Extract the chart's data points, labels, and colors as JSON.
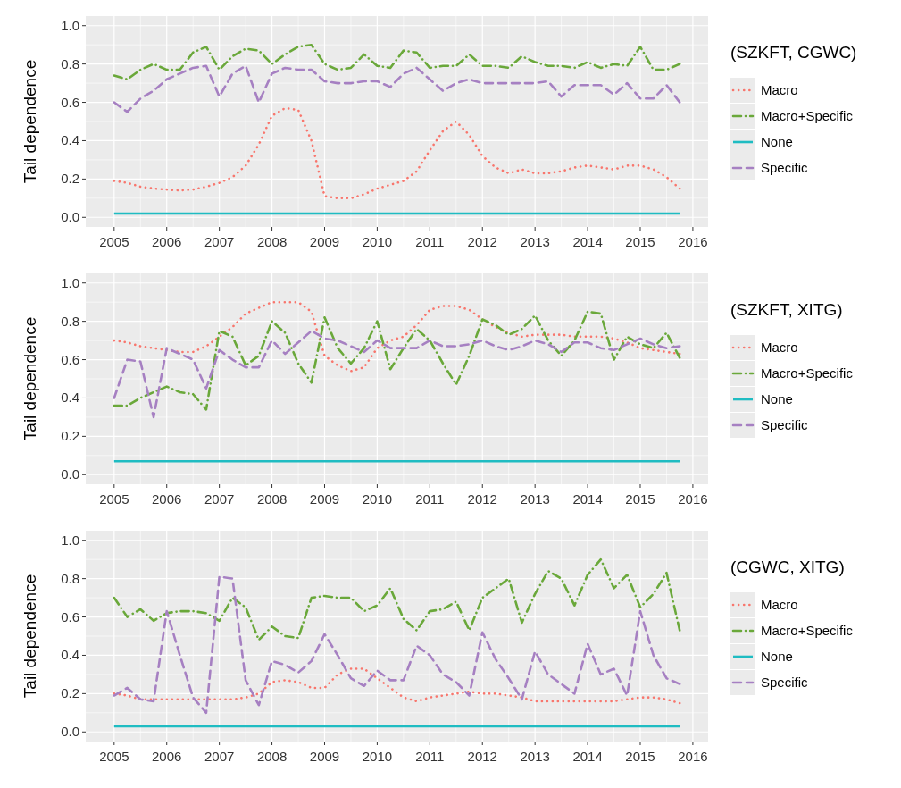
{
  "chart_data": [
    {
      "type": "line",
      "ylabel": "Tail dependence",
      "legend_title": "(SZKFT, CGWC)",
      "legend": "right",
      "grid": true,
      "xlim": [
        2004.46,
        2016.29
      ],
      "ylim": [
        -0.05,
        1.05
      ],
      "xticks": [
        2005,
        2006,
        2007,
        2008,
        2009,
        2010,
        2011,
        2012,
        2013,
        2014,
        2015,
        2016
      ],
      "yticks": [
        {
          "value": 0,
          "label": "0.0"
        },
        {
          "value": 0.2,
          "label": "0.2"
        },
        {
          "value": 0.4,
          "label": "0.4"
        },
        {
          "value": 0.6,
          "label": "0.6"
        },
        {
          "value": 0.8,
          "label": "0.8"
        },
        {
          "value": 1,
          "label": "1.0"
        }
      ],
      "x": [
        2005,
        2005.25,
        2005.5,
        2005.75,
        2006,
        2006.25,
        2006.5,
        2006.75,
        2007,
        2007.25,
        2007.5,
        2007.75,
        2008,
        2008.25,
        2008.5,
        2008.75,
        2009,
        2009.25,
        2009.5,
        2009.75,
        2010,
        2010.25,
        2010.5,
        2010.75,
        2011,
        2011.25,
        2011.5,
        2011.75,
        2012,
        2012.25,
        2012.5,
        2012.75,
        2013,
        2013.25,
        2013.5,
        2013.75,
        2014,
        2014.25,
        2014.5,
        2014.75,
        2015,
        2015.25,
        2015.5,
        2015.75
      ],
      "series": [
        {
          "name": "Macro",
          "color": "#f8766d",
          "line_style": "dotted",
          "values": [
            0.19,
            0.18,
            0.16,
            0.15,
            0.145,
            0.14,
            0.145,
            0.16,
            0.18,
            0.21,
            0.27,
            0.38,
            0.53,
            0.57,
            0.56,
            0.4,
            0.11,
            0.1,
            0.1,
            0.12,
            0.15,
            0.17,
            0.19,
            0.24,
            0.35,
            0.45,
            0.5,
            0.43,
            0.32,
            0.26,
            0.23,
            0.25,
            0.23,
            0.23,
            0.24,
            0.26,
            0.27,
            0.26,
            0.25,
            0.27,
            0.27,
            0.25,
            0.21,
            0.15
          ]
        },
        {
          "name": "Macro+Specific",
          "color": "#6aa83a",
          "line_style": "dashdot",
          "values": [
            0.74,
            0.72,
            0.77,
            0.8,
            0.77,
            0.77,
            0.86,
            0.89,
            0.77,
            0.84,
            0.88,
            0.87,
            0.8,
            0.85,
            0.89,
            0.9,
            0.8,
            0.77,
            0.78,
            0.85,
            0.79,
            0.78,
            0.87,
            0.86,
            0.78,
            0.79,
            0.79,
            0.85,
            0.79,
            0.79,
            0.78,
            0.84,
            0.81,
            0.79,
            0.79,
            0.78,
            0.81,
            0.78,
            0.8,
            0.79,
            0.89,
            0.77,
            0.77,
            0.8
          ]
        },
        {
          "name": "None",
          "color": "#1fbcc2",
          "line_style": "solid",
          "values": [
            0.02,
            0.02,
            0.02,
            0.02,
            0.02,
            0.02,
            0.02,
            0.02,
            0.02,
            0.02,
            0.02,
            0.02,
            0.02,
            0.02,
            0.02,
            0.02,
            0.02,
            0.02,
            0.02,
            0.02,
            0.02,
            0.02,
            0.02,
            0.02,
            0.02,
            0.02,
            0.02,
            0.02,
            0.02,
            0.02,
            0.02,
            0.02,
            0.02,
            0.02,
            0.02,
            0.02,
            0.02,
            0.02,
            0.02,
            0.02,
            0.02,
            0.02,
            0.02,
            0.02
          ]
        },
        {
          "name": "Specific",
          "color": "#a680c2",
          "line_style": "dashed",
          "values": [
            0.6,
            0.55,
            0.62,
            0.66,
            0.72,
            0.75,
            0.78,
            0.79,
            0.63,
            0.75,
            0.79,
            0.6,
            0.75,
            0.78,
            0.77,
            0.77,
            0.71,
            0.7,
            0.7,
            0.71,
            0.71,
            0.68,
            0.75,
            0.78,
            0.72,
            0.66,
            0.7,
            0.72,
            0.7,
            0.7,
            0.7,
            0.7,
            0.7,
            0.71,
            0.63,
            0.69,
            0.69,
            0.69,
            0.64,
            0.7,
            0.62,
            0.62,
            0.69,
            0.6
          ]
        }
      ]
    },
    {
      "type": "line",
      "ylabel": "Tail dependence",
      "legend_title": "(SZKFT, XITG)",
      "legend": "right",
      "grid": true,
      "xlim": [
        2004.46,
        2016.29
      ],
      "ylim": [
        -0.05,
        1.05
      ],
      "xticks": [
        2005,
        2006,
        2007,
        2008,
        2009,
        2010,
        2011,
        2012,
        2013,
        2014,
        2015,
        2016
      ],
      "yticks": [
        {
          "value": 0,
          "label": "0.0"
        },
        {
          "value": 0.2,
          "label": "0.2"
        },
        {
          "value": 0.4,
          "label": "0.4"
        },
        {
          "value": 0.6,
          "label": "0.6"
        },
        {
          "value": 0.8,
          "label": "0.8"
        },
        {
          "value": 1,
          "label": "1.0"
        }
      ],
      "x": [
        2005,
        2005.25,
        2005.5,
        2005.75,
        2006,
        2006.25,
        2006.5,
        2006.75,
        2007,
        2007.25,
        2007.5,
        2007.75,
        2008,
        2008.25,
        2008.5,
        2008.75,
        2009,
        2009.25,
        2009.5,
        2009.75,
        2010,
        2010.25,
        2010.5,
        2010.75,
        2011,
        2011.25,
        2011.5,
        2011.75,
        2012,
        2012.25,
        2012.5,
        2012.75,
        2013,
        2013.25,
        2013.5,
        2013.75,
        2014,
        2014.25,
        2014.5,
        2014.75,
        2015,
        2015.25,
        2015.5,
        2015.75
      ],
      "series": [
        {
          "name": "Macro",
          "color": "#f8766d",
          "line_style": "dotted",
          "values": [
            0.7,
            0.69,
            0.67,
            0.66,
            0.65,
            0.64,
            0.64,
            0.67,
            0.72,
            0.77,
            0.84,
            0.87,
            0.9,
            0.9,
            0.9,
            0.85,
            0.62,
            0.57,
            0.54,
            0.56,
            0.66,
            0.7,
            0.72,
            0.78,
            0.86,
            0.88,
            0.88,
            0.86,
            0.81,
            0.77,
            0.74,
            0.72,
            0.73,
            0.73,
            0.73,
            0.72,
            0.72,
            0.72,
            0.71,
            0.69,
            0.66,
            0.65,
            0.64,
            0.63
          ]
        },
        {
          "name": "Macro+Specific",
          "color": "#6aa83a",
          "line_style": "dashdot",
          "values": [
            0.36,
            0.36,
            0.4,
            0.43,
            0.46,
            0.43,
            0.42,
            0.34,
            0.75,
            0.72,
            0.57,
            0.62,
            0.8,
            0.74,
            0.58,
            0.48,
            0.82,
            0.66,
            0.58,
            0.66,
            0.8,
            0.55,
            0.66,
            0.76,
            0.7,
            0.58,
            0.47,
            0.62,
            0.81,
            0.78,
            0.73,
            0.76,
            0.83,
            0.7,
            0.62,
            0.7,
            0.85,
            0.84,
            0.6,
            0.72,
            0.68,
            0.66,
            0.74,
            0.61
          ]
        },
        {
          "name": "None",
          "color": "#1fbcc2",
          "line_style": "solid",
          "values": [
            0.07,
            0.07,
            0.07,
            0.07,
            0.07,
            0.07,
            0.07,
            0.07,
            0.07,
            0.07,
            0.07,
            0.07,
            0.07,
            0.07,
            0.07,
            0.07,
            0.07,
            0.07,
            0.07,
            0.07,
            0.07,
            0.07,
            0.07,
            0.07,
            0.07,
            0.07,
            0.07,
            0.07,
            0.07,
            0.07,
            0.07,
            0.07,
            0.07,
            0.07,
            0.07,
            0.07,
            0.07,
            0.07,
            0.07,
            0.07,
            0.07,
            0.07,
            0.07,
            0.07
          ]
        },
        {
          "name": "Specific",
          "color": "#a680c2",
          "line_style": "dashed",
          "values": [
            0.4,
            0.6,
            0.59,
            0.3,
            0.66,
            0.63,
            0.6,
            0.45,
            0.65,
            0.6,
            0.56,
            0.56,
            0.7,
            0.63,
            0.69,
            0.75,
            0.71,
            0.7,
            0.67,
            0.64,
            0.7,
            0.66,
            0.66,
            0.66,
            0.7,
            0.67,
            0.67,
            0.68,
            0.7,
            0.67,
            0.65,
            0.67,
            0.7,
            0.68,
            0.64,
            0.69,
            0.69,
            0.66,
            0.65,
            0.68,
            0.71,
            0.68,
            0.66,
            0.67
          ]
        }
      ]
    },
    {
      "type": "line",
      "ylabel": "Tail dependence",
      "legend_title": "(CGWC, XITG)",
      "legend": "right",
      "grid": true,
      "xlim": [
        2004.46,
        2016.29
      ],
      "ylim": [
        -0.05,
        1.05
      ],
      "xticks": [
        2005,
        2006,
        2007,
        2008,
        2009,
        2010,
        2011,
        2012,
        2013,
        2014,
        2015,
        2016
      ],
      "yticks": [
        {
          "value": 0,
          "label": "0.0"
        },
        {
          "value": 0.2,
          "label": "0.2"
        },
        {
          "value": 0.4,
          "label": "0.4"
        },
        {
          "value": 0.6,
          "label": "0.6"
        },
        {
          "value": 0.8,
          "label": "0.8"
        },
        {
          "value": 1,
          "label": "1.0"
        }
      ],
      "x": [
        2005,
        2005.25,
        2005.5,
        2005.75,
        2006,
        2006.25,
        2006.5,
        2006.75,
        2007,
        2007.25,
        2007.5,
        2007.75,
        2008,
        2008.25,
        2008.5,
        2008.75,
        2009,
        2009.25,
        2009.5,
        2009.75,
        2010,
        2010.25,
        2010.5,
        2010.75,
        2011,
        2011.25,
        2011.5,
        2011.75,
        2012,
        2012.25,
        2012.5,
        2012.75,
        2013,
        2013.25,
        2013.5,
        2013.75,
        2014,
        2014.25,
        2014.5,
        2014.75,
        2015,
        2015.25,
        2015.5,
        2015.75
      ],
      "series": [
        {
          "name": "Macro",
          "color": "#f8766d",
          "line_style": "dotted",
          "values": [
            0.2,
            0.19,
            0.17,
            0.17,
            0.17,
            0.17,
            0.17,
            0.17,
            0.17,
            0.17,
            0.18,
            0.2,
            0.26,
            0.27,
            0.26,
            0.23,
            0.23,
            0.3,
            0.33,
            0.33,
            0.28,
            0.23,
            0.18,
            0.16,
            0.18,
            0.19,
            0.2,
            0.21,
            0.2,
            0.2,
            0.19,
            0.18,
            0.16,
            0.16,
            0.16,
            0.16,
            0.16,
            0.16,
            0.16,
            0.17,
            0.18,
            0.18,
            0.17,
            0.15
          ]
        },
        {
          "name": "Macro+Specific",
          "color": "#6aa83a",
          "line_style": "dashdot",
          "values": [
            0.7,
            0.6,
            0.64,
            0.58,
            0.62,
            0.63,
            0.63,
            0.62,
            0.58,
            0.7,
            0.65,
            0.48,
            0.55,
            0.5,
            0.49,
            0.7,
            0.71,
            0.7,
            0.7,
            0.63,
            0.66,
            0.75,
            0.59,
            0.53,
            0.63,
            0.64,
            0.68,
            0.53,
            0.7,
            0.75,
            0.8,
            0.57,
            0.72,
            0.84,
            0.8,
            0.66,
            0.82,
            0.9,
            0.75,
            0.82,
            0.65,
            0.72,
            0.83,
            0.53
          ]
        },
        {
          "name": "None",
          "color": "#1fbcc2",
          "line_style": "solid",
          "values": [
            0.03,
            0.03,
            0.03,
            0.03,
            0.03,
            0.03,
            0.03,
            0.03,
            0.03,
            0.03,
            0.03,
            0.03,
            0.03,
            0.03,
            0.03,
            0.03,
            0.03,
            0.03,
            0.03,
            0.03,
            0.03,
            0.03,
            0.03,
            0.03,
            0.03,
            0.03,
            0.03,
            0.03,
            0.03,
            0.03,
            0.03,
            0.03,
            0.03,
            0.03,
            0.03,
            0.03,
            0.03,
            0.03,
            0.03,
            0.03,
            0.03,
            0.03,
            0.03,
            0.03
          ]
        },
        {
          "name": "Specific",
          "color": "#a680c2",
          "line_style": "dashed",
          "values": [
            0.19,
            0.23,
            0.17,
            0.16,
            0.63,
            0.4,
            0.18,
            0.1,
            0.81,
            0.8,
            0.27,
            0.14,
            0.37,
            0.35,
            0.31,
            0.37,
            0.51,
            0.4,
            0.28,
            0.24,
            0.32,
            0.27,
            0.27,
            0.45,
            0.4,
            0.3,
            0.26,
            0.19,
            0.52,
            0.38,
            0.28,
            0.17,
            0.42,
            0.3,
            0.25,
            0.2,
            0.46,
            0.3,
            0.33,
            0.19,
            0.63,
            0.4,
            0.28,
            0.25
          ]
        }
      ]
    }
  ]
}
